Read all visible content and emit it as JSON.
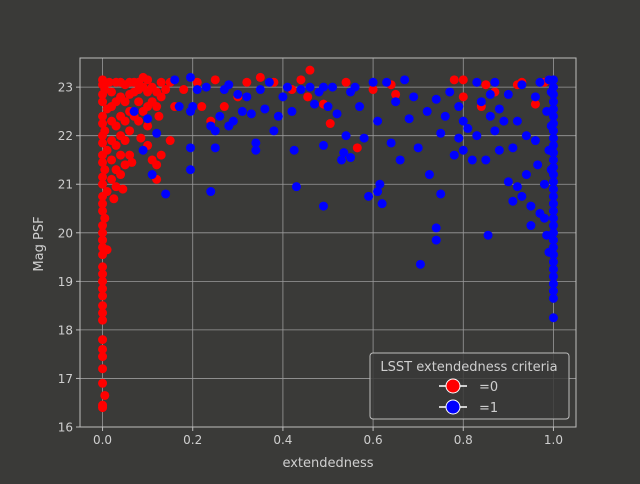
{
  "colors": {
    "background": "#3a3a38",
    "axes_face": "#3a3a38",
    "spine": "#bdbdbd",
    "grid": "#9a9a9a",
    "text": "#cfcfcf",
    "legend_bg": "#3a3a38",
    "legend_edge": "#bdbdbd",
    "class0": "#ff0000",
    "class1": "#0000ff"
  },
  "chart_data": {
    "type": "scatter",
    "title": "",
    "xlabel": "extendedness",
    "ylabel": "Mag PSF",
    "xlim": [
      -0.05,
      1.05
    ],
    "ylim": [
      16,
      23.6
    ],
    "xticks": [
      0.0,
      0.2,
      0.4,
      0.6,
      0.8,
      1.0
    ],
    "xtick_labels": [
      "0.0",
      "0.2",
      "0.4",
      "0.6",
      "0.8",
      "1.0"
    ],
    "yticks": [
      16,
      17,
      18,
      19,
      20,
      21,
      22,
      23
    ],
    "ytick_labels": [
      "16",
      "17",
      "18",
      "19",
      "20",
      "21",
      "22",
      "23"
    ],
    "grid": true,
    "legend": {
      "title": "LSST extendedness criteria",
      "placement": "lower-right",
      "entries": [
        "=0",
        "=1"
      ]
    },
    "series": [
      {
        "name": "=0",
        "color": "#ff0000",
        "points": [
          [
            0.0,
            16.4
          ],
          [
            0.0,
            16.45
          ],
          [
            0.005,
            16.65
          ],
          [
            0.0,
            16.9
          ],
          [
            0.0,
            17.2
          ],
          [
            0.0,
            17.45
          ],
          [
            0.0,
            17.6
          ],
          [
            0.0,
            17.8
          ],
          [
            0.0,
            18.2
          ],
          [
            0.0,
            18.35
          ],
          [
            0.0,
            18.5
          ],
          [
            0.0,
            18.7
          ],
          [
            0.0,
            18.85
          ],
          [
            0.0,
            19.0
          ],
          [
            0.0,
            19.15
          ],
          [
            0.0,
            19.3
          ],
          [
            0.0,
            19.55
          ],
          [
            0.0,
            19.7
          ],
          [
            0.01,
            19.65
          ],
          [
            0.0,
            19.85
          ],
          [
            0.0,
            20.0
          ],
          [
            0.0,
            20.15
          ],
          [
            0.005,
            20.3
          ],
          [
            0.0,
            20.45
          ],
          [
            0.0,
            20.6
          ],
          [
            0.0,
            20.75
          ],
          [
            0.01,
            20.85
          ],
          [
            0.0,
            21.0
          ],
          [
            0.0,
            21.15
          ],
          [
            0.005,
            21.3
          ],
          [
            0.0,
            21.45
          ],
          [
            0.0,
            21.6
          ],
          [
            0.01,
            21.7
          ],
          [
            0.0,
            21.85
          ],
          [
            0.0,
            22.0
          ],
          [
            0.005,
            22.1
          ],
          [
            0.0,
            22.25
          ],
          [
            0.0,
            22.4
          ],
          [
            0.01,
            22.55
          ],
          [
            0.0,
            22.7
          ],
          [
            0.0,
            22.85
          ],
          [
            0.005,
            22.95
          ],
          [
            0.0,
            23.05
          ],
          [
            0.0,
            23.15
          ],
          [
            0.015,
            23.1
          ],
          [
            0.02,
            22.9
          ],
          [
            0.02,
            22.6
          ],
          [
            0.02,
            22.3
          ],
          [
            0.02,
            21.9
          ],
          [
            0.02,
            21.5
          ],
          [
            0.02,
            21.1
          ],
          [
            0.025,
            20.7
          ],
          [
            0.03,
            20.95
          ],
          [
            0.03,
            21.3
          ],
          [
            0.03,
            21.8
          ],
          [
            0.03,
            22.2
          ],
          [
            0.03,
            22.7
          ],
          [
            0.03,
            23.1
          ],
          [
            0.04,
            23.1
          ],
          [
            0.04,
            22.8
          ],
          [
            0.04,
            22.4
          ],
          [
            0.04,
            22.0
          ],
          [
            0.04,
            21.6
          ],
          [
            0.04,
            21.2
          ],
          [
            0.045,
            20.9
          ],
          [
            0.05,
            21.4
          ],
          [
            0.05,
            21.9
          ],
          [
            0.05,
            22.3
          ],
          [
            0.05,
            22.7
          ],
          [
            0.05,
            23.05
          ],
          [
            0.06,
            23.1
          ],
          [
            0.06,
            22.85
          ],
          [
            0.06,
            22.5
          ],
          [
            0.06,
            22.1
          ],
          [
            0.06,
            21.6
          ],
          [
            0.065,
            21.45
          ],
          [
            0.07,
            22.4
          ],
          [
            0.07,
            22.9
          ],
          [
            0.07,
            23.1
          ],
          [
            0.08,
            23.1
          ],
          [
            0.08,
            22.95
          ],
          [
            0.08,
            22.7
          ],
          [
            0.08,
            22.3
          ],
          [
            0.085,
            21.95
          ],
          [
            0.09,
            22.5
          ],
          [
            0.09,
            23.0
          ],
          [
            0.09,
            23.2
          ],
          [
            0.1,
            23.15
          ],
          [
            0.1,
            22.9
          ],
          [
            0.1,
            22.6
          ],
          [
            0.1,
            22.2
          ],
          [
            0.1,
            21.8
          ],
          [
            0.11,
            22.7
          ],
          [
            0.11,
            23.0
          ],
          [
            0.11,
            21.5
          ],
          [
            0.12,
            22.9
          ],
          [
            0.12,
            22.6
          ],
          [
            0.12,
            21.4
          ],
          [
            0.12,
            21.1
          ],
          [
            0.125,
            22.4
          ],
          [
            0.13,
            23.1
          ],
          [
            0.13,
            22.8
          ],
          [
            0.13,
            21.6
          ],
          [
            0.14,
            22.95
          ],
          [
            0.15,
            21.9
          ],
          [
            0.15,
            23.1
          ],
          [
            0.16,
            22.6
          ],
          [
            0.18,
            22.95
          ],
          [
            0.21,
            23.1
          ],
          [
            0.22,
            22.6
          ],
          [
            0.24,
            22.3
          ],
          [
            0.25,
            23.15
          ],
          [
            0.27,
            22.6
          ],
          [
            0.3,
            22.8
          ],
          [
            0.32,
            23.1
          ],
          [
            0.35,
            23.2
          ],
          [
            0.38,
            23.1
          ],
          [
            0.42,
            22.95
          ],
          [
            0.44,
            23.15
          ],
          [
            0.455,
            22.8
          ],
          [
            0.46,
            23.35
          ],
          [
            0.49,
            22.65
          ],
          [
            0.505,
            22.25
          ],
          [
            0.54,
            23.1
          ],
          [
            0.565,
            21.75
          ],
          [
            0.6,
            22.95
          ],
          [
            0.64,
            23.05
          ],
          [
            0.65,
            22.85
          ],
          [
            0.78,
            23.15
          ],
          [
            0.8,
            22.8
          ],
          [
            0.8,
            23.15
          ],
          [
            0.84,
            22.6
          ],
          [
            0.85,
            23.05
          ],
          [
            0.87,
            22.9
          ],
          [
            0.92,
            23.05
          ],
          [
            0.93,
            23.1
          ],
          [
            0.96,
            22.65
          ],
          [
            0.98,
            23.1
          ],
          [
            0.99,
            23.15
          ]
        ]
      },
      {
        "name": "=1",
        "color": "#0000ff",
        "points": [
          [
            0.07,
            22.5
          ],
          [
            0.09,
            21.7
          ],
          [
            0.1,
            22.35
          ],
          [
            0.11,
            21.2
          ],
          [
            0.12,
            22.05
          ],
          [
            0.14,
            20.8
          ],
          [
            0.16,
            23.15
          ],
          [
            0.17,
            22.6
          ],
          [
            0.195,
            23.2
          ],
          [
            0.195,
            22.5
          ],
          [
            0.195,
            21.75
          ],
          [
            0.195,
            21.3
          ],
          [
            0.2,
            22.6
          ],
          [
            0.21,
            22.95
          ],
          [
            0.23,
            23.0
          ],
          [
            0.24,
            22.2
          ],
          [
            0.24,
            20.85
          ],
          [
            0.25,
            22.1
          ],
          [
            0.25,
            21.75
          ],
          [
            0.26,
            22.4
          ],
          [
            0.27,
            22.95
          ],
          [
            0.28,
            22.2
          ],
          [
            0.28,
            23.05
          ],
          [
            0.29,
            22.3
          ],
          [
            0.3,
            22.85
          ],
          [
            0.31,
            22.5
          ],
          [
            0.32,
            22.8
          ],
          [
            0.33,
            22.45
          ],
          [
            0.34,
            21.85
          ],
          [
            0.34,
            21.7
          ],
          [
            0.35,
            22.95
          ],
          [
            0.36,
            22.55
          ],
          [
            0.37,
            23.1
          ],
          [
            0.38,
            22.1
          ],
          [
            0.39,
            22.4
          ],
          [
            0.4,
            22.8
          ],
          [
            0.41,
            23.0
          ],
          [
            0.42,
            22.5
          ],
          [
            0.425,
            21.7
          ],
          [
            0.43,
            20.95
          ],
          [
            0.44,
            22.95
          ],
          [
            0.46,
            23.0
          ],
          [
            0.47,
            22.65
          ],
          [
            0.48,
            22.9
          ],
          [
            0.49,
            23.0
          ],
          [
            0.49,
            21.8
          ],
          [
            0.49,
            20.55
          ],
          [
            0.5,
            22.6
          ],
          [
            0.51,
            23.0
          ],
          [
            0.52,
            22.45
          ],
          [
            0.53,
            21.5
          ],
          [
            0.535,
            21.65
          ],
          [
            0.54,
            22.0
          ],
          [
            0.55,
            22.9
          ],
          [
            0.55,
            21.55
          ],
          [
            0.56,
            23.0
          ],
          [
            0.57,
            22.6
          ],
          [
            0.58,
            21.95
          ],
          [
            0.59,
            20.75
          ],
          [
            0.6,
            23.1
          ],
          [
            0.61,
            22.3
          ],
          [
            0.61,
            20.85
          ],
          [
            0.615,
            21.0
          ],
          [
            0.62,
            20.6
          ],
          [
            0.63,
            23.1
          ],
          [
            0.64,
            21.85
          ],
          [
            0.65,
            22.7
          ],
          [
            0.66,
            21.5
          ],
          [
            0.67,
            23.15
          ],
          [
            0.68,
            22.35
          ],
          [
            0.69,
            22.8
          ],
          [
            0.7,
            21.75
          ],
          [
            0.705,
            19.35
          ],
          [
            0.72,
            22.5
          ],
          [
            0.725,
            21.2
          ],
          [
            0.74,
            22.75
          ],
          [
            0.74,
            20.1
          ],
          [
            0.74,
            19.85
          ],
          [
            0.75,
            22.05
          ],
          [
            0.75,
            20.8
          ],
          [
            0.76,
            22.4
          ],
          [
            0.77,
            22.9
          ],
          [
            0.78,
            21.6
          ],
          [
            0.79,
            22.6
          ],
          [
            0.79,
            21.95
          ],
          [
            0.8,
            22.3
          ],
          [
            0.8,
            21.7
          ],
          [
            0.81,
            22.15
          ],
          [
            0.82,
            21.5
          ],
          [
            0.83,
            22.0
          ],
          [
            0.83,
            23.1
          ],
          [
            0.84,
            22.7
          ],
          [
            0.85,
            21.5
          ],
          [
            0.855,
            19.95
          ],
          [
            0.86,
            22.4
          ],
          [
            0.86,
            22.85
          ],
          [
            0.87,
            22.1
          ],
          [
            0.87,
            23.1
          ],
          [
            0.88,
            21.7
          ],
          [
            0.88,
            22.55
          ],
          [
            0.89,
            22.3
          ],
          [
            0.9,
            21.05
          ],
          [
            0.9,
            22.85
          ],
          [
            0.91,
            20.65
          ],
          [
            0.91,
            21.75
          ],
          [
            0.92,
            22.3
          ],
          [
            0.92,
            20.95
          ],
          [
            0.93,
            20.75
          ],
          [
            0.93,
            23.05
          ],
          [
            0.94,
            22.0
          ],
          [
            0.94,
            21.2
          ],
          [
            0.95,
            20.55
          ],
          [
            0.95,
            20.15
          ],
          [
            0.96,
            22.8
          ],
          [
            0.96,
            21.9
          ],
          [
            0.965,
            21.4
          ],
          [
            0.97,
            20.4
          ],
          [
            0.97,
            23.1
          ],
          [
            0.98,
            21.0
          ],
          [
            0.98,
            20.3
          ],
          [
            0.985,
            22.5
          ],
          [
            0.985,
            19.95
          ],
          [
            0.99,
            21.7
          ],
          [
            0.99,
            19.6
          ],
          [
            0.99,
            23.15
          ],
          [
            0.995,
            22.9
          ],
          [
            0.995,
            22.2
          ],
          [
            0.995,
            21.3
          ],
          [
            1.0,
            23.15
          ],
          [
            1.0,
            23.0
          ],
          [
            1.0,
            22.85
          ],
          [
            1.0,
            22.7
          ],
          [
            1.0,
            22.55
          ],
          [
            1.0,
            22.4
          ],
          [
            1.0,
            22.25
          ],
          [
            1.0,
            22.1
          ],
          [
            1.0,
            21.95
          ],
          [
            1.0,
            21.8
          ],
          [
            1.0,
            21.65
          ],
          [
            1.0,
            21.5
          ],
          [
            1.0,
            21.35
          ],
          [
            1.0,
            21.2
          ],
          [
            1.0,
            21.05
          ],
          [
            1.0,
            20.9
          ],
          [
            1.0,
            20.75
          ],
          [
            1.0,
            20.6
          ],
          [
            1.0,
            20.45
          ],
          [
            1.0,
            20.3
          ],
          [
            1.0,
            20.15
          ],
          [
            1.0,
            20.0
          ],
          [
            1.0,
            19.85
          ],
          [
            1.0,
            19.7
          ],
          [
            1.0,
            19.55
          ],
          [
            1.0,
            19.4
          ],
          [
            1.0,
            19.25
          ],
          [
            1.0,
            19.1
          ],
          [
            1.0,
            18.95
          ],
          [
            1.0,
            18.8
          ],
          [
            1.0,
            18.65
          ],
          [
            1.0,
            18.25
          ]
        ]
      }
    ]
  }
}
